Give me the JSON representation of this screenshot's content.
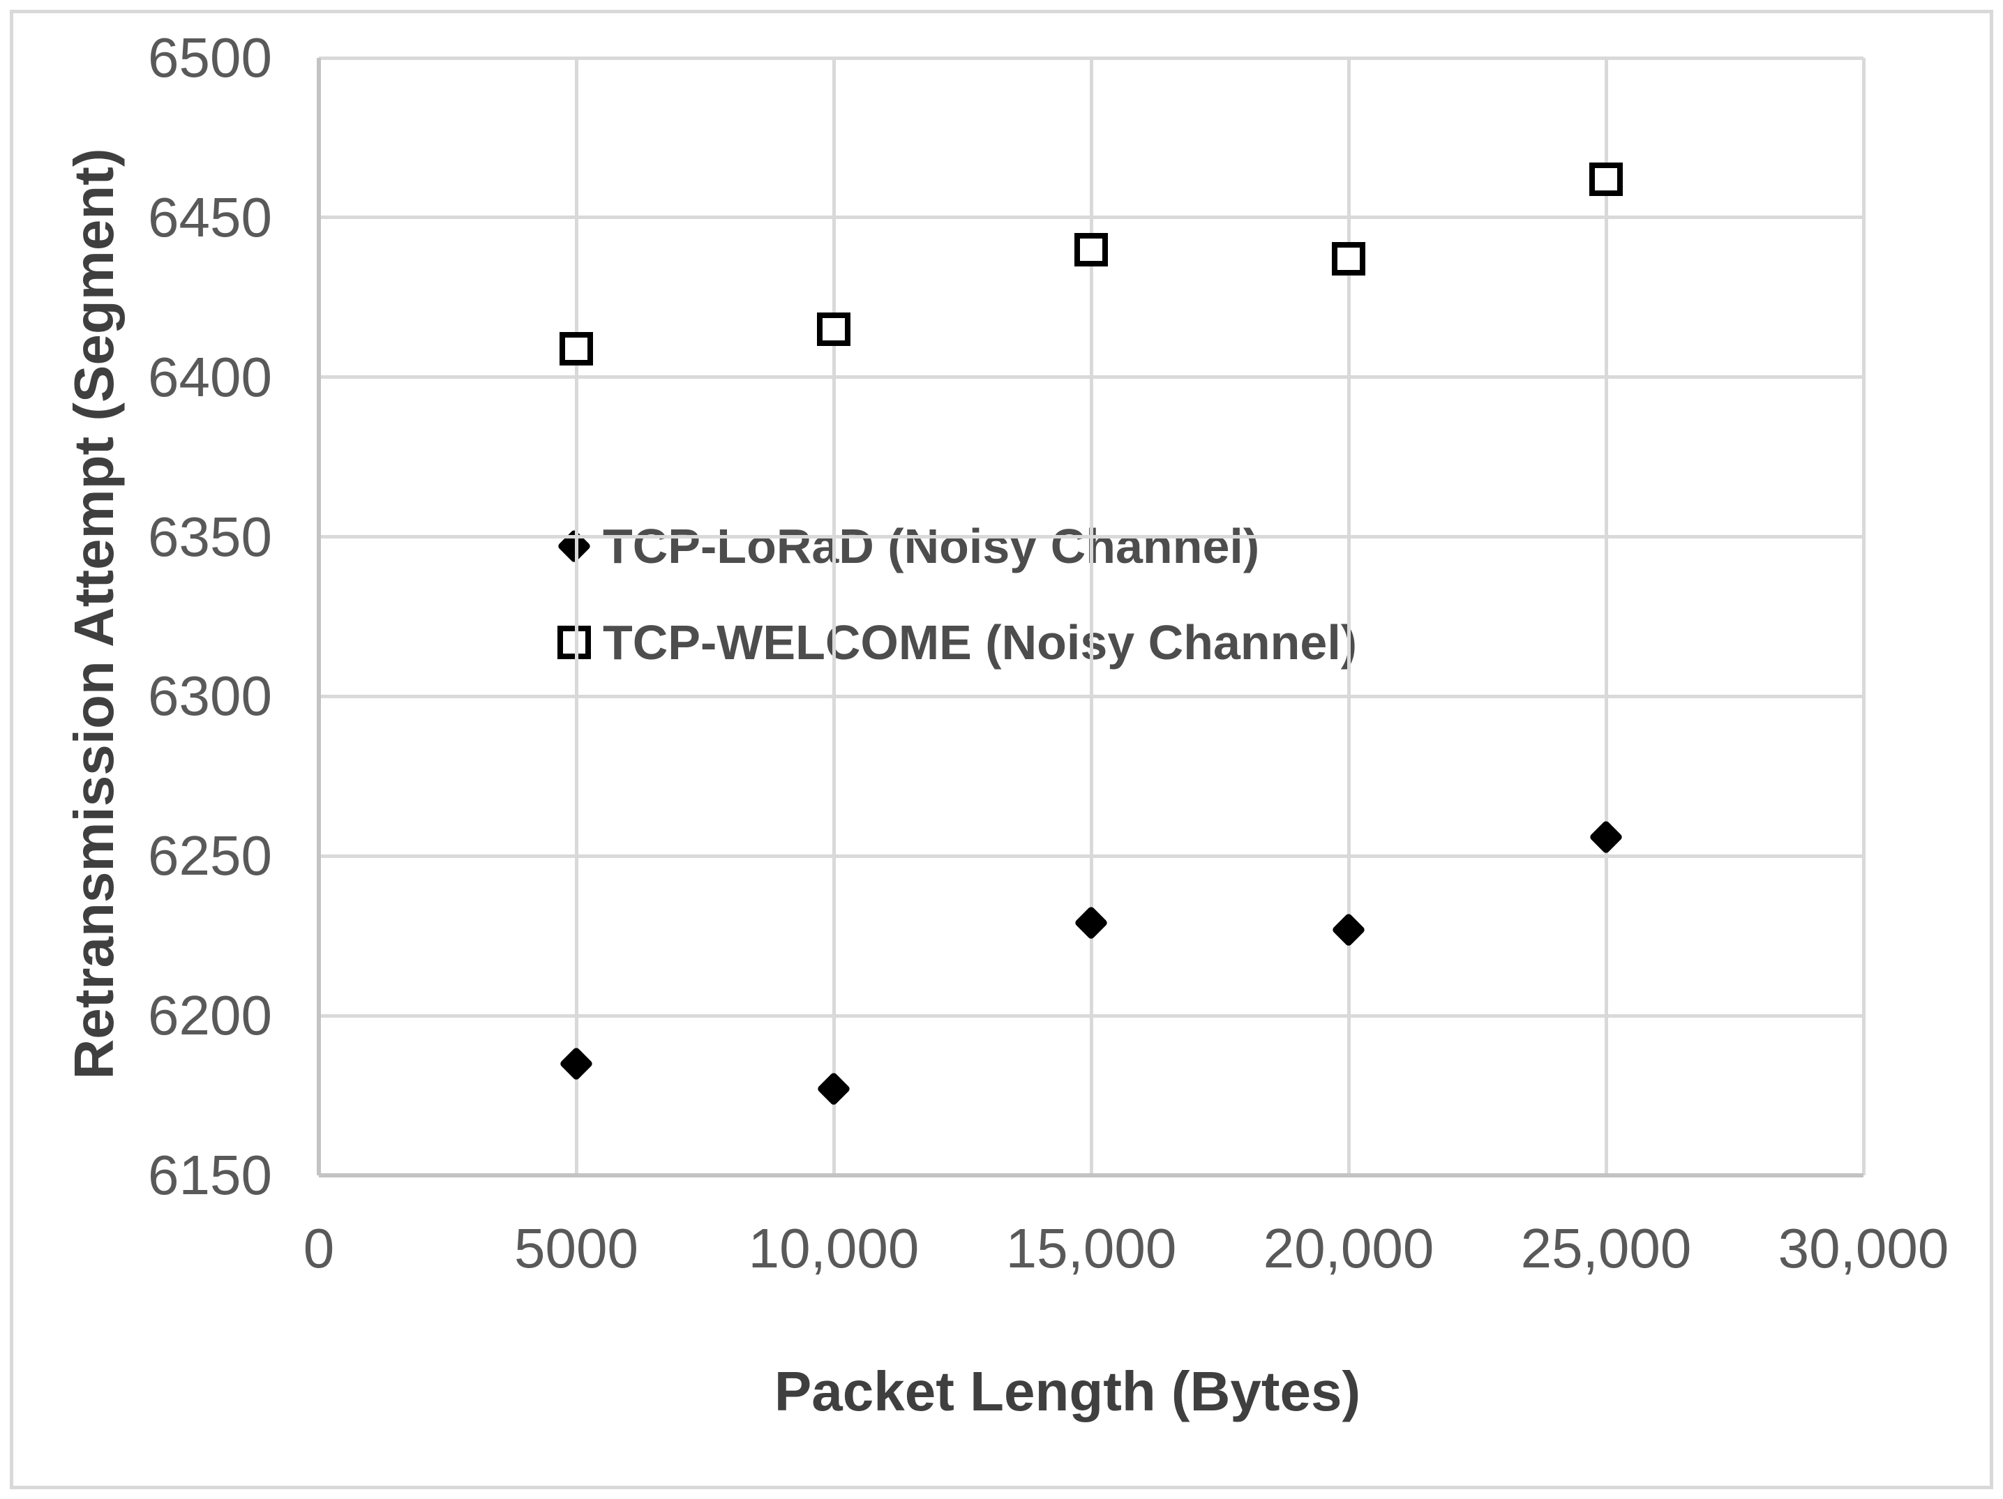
{
  "colors": {
    "background": "#ffffff",
    "figure_border": "#d9d9d9",
    "gridline": "#d9d9d9",
    "axis_line": "#c3c3c3",
    "tick_text": "#595959",
    "axis_title_text": "#3f3f3f",
    "legend_text": "#4d4d4d",
    "marker": "#000000"
  },
  "chart_data": {
    "type": "scatter",
    "title": "",
    "xlabel": "Packet Length (Bytes)",
    "ylabel": "Retransmission Attempt (Segment)",
    "xlim": [
      0,
      30000
    ],
    "ylim": [
      6150,
      6500
    ],
    "grid": true,
    "legend_position": "inside-left-middle",
    "x_ticks": [
      {
        "value": 0,
        "label": "0"
      },
      {
        "value": 5000,
        "label": "5000"
      },
      {
        "value": 10000,
        "label": "10,000"
      },
      {
        "value": 15000,
        "label": "15,000"
      },
      {
        "value": 20000,
        "label": "20,000"
      },
      {
        "value": 25000,
        "label": "25,000"
      },
      {
        "value": 30000,
        "label": "30,000"
      }
    ],
    "y_ticks": [
      {
        "value": 6500,
        "label": "6500"
      },
      {
        "value": 6450,
        "label": "6450"
      },
      {
        "value": 6400,
        "label": "6400"
      },
      {
        "value": 6350,
        "label": "6350"
      },
      {
        "value": 6300,
        "label": "6300"
      },
      {
        "value": 6250,
        "label": "6250"
      },
      {
        "value": 6200,
        "label": "6200"
      },
      {
        "value": 6150,
        "label": "6150"
      }
    ],
    "series": [
      {
        "name": "TCP-LoRaD (Noisy Channel)",
        "marker": "filled-diamond",
        "color": "#000000",
        "x": [
          5000,
          10000,
          15000,
          20000,
          25000
        ],
        "y": [
          6185,
          6177,
          6229,
          6227,
          6256
        ]
      },
      {
        "name": "TCP-WELCOME (Noisy Channel)",
        "marker": "open-square",
        "color": "#000000",
        "x": [
          5000,
          10000,
          15000,
          20000,
          25000
        ],
        "y": [
          6409,
          6415,
          6440,
          6437,
          6462
        ]
      }
    ]
  }
}
